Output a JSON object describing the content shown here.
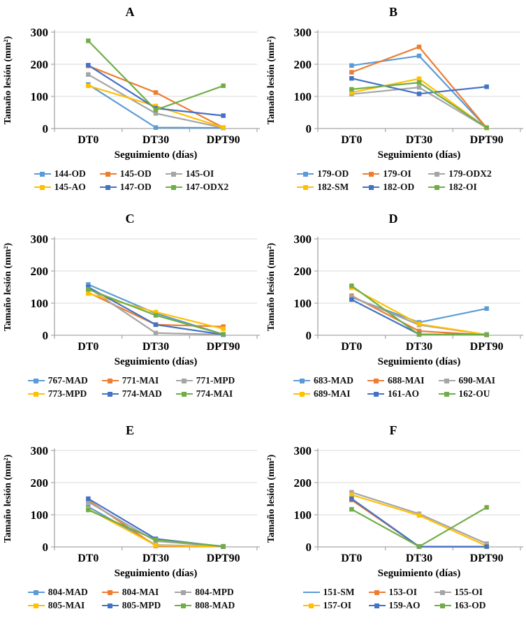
{
  "figure": {
    "background": "#FFFFFF",
    "axis_color": "#A6A6A6",
    "grid_color": "#D9D9D9",
    "text_color": "#000000"
  },
  "chart_data": [
    {
      "panel": "A",
      "type": "line",
      "title": "A",
      "xlabel": "Seguimiento (días)",
      "ylabel": "Tamaño lesión (mm²)",
      "categories": [
        "DT0",
        "DT30",
        "DPT90"
      ],
      "ylim": [
        0,
        300
      ],
      "yticks": [
        0,
        100,
        200,
        300
      ],
      "grid": true,
      "legend_position": "bottom",
      "series": [
        {
          "name": "144-OD",
          "color": "#5B9BD5",
          "marker": "square",
          "values": [
            137,
            3,
            2
          ]
        },
        {
          "name": "145-OD",
          "color": "#ED7D31",
          "marker": "square",
          "values": [
            195,
            112,
            3
          ]
        },
        {
          "name": "145-OI",
          "color": "#A5A5A5",
          "marker": "square",
          "values": [
            168,
            47,
            2
          ]
        },
        {
          "name": "145-AO",
          "color": "#FFC000",
          "marker": "square",
          "values": [
            133,
            70,
            3
          ]
        },
        {
          "name": "147-OD",
          "color": "#4472C4",
          "marker": "square",
          "values": [
            197,
            63,
            40
          ]
        },
        {
          "name": "147-ODX2",
          "color": "#70AD47",
          "marker": "square",
          "values": [
            273,
            58,
            133
          ]
        }
      ]
    },
    {
      "panel": "B",
      "type": "line",
      "title": "B",
      "xlabel": "Seguimiento (días)",
      "ylabel": "Tamaño lesión (mm²)",
      "categories": [
        "DT0",
        "DT30",
        "DPT90"
      ],
      "ylim": [
        0,
        300
      ],
      "yticks": [
        0,
        100,
        200,
        300
      ],
      "grid": true,
      "legend_position": "bottom",
      "series": [
        {
          "name": "179-OD",
          "color": "#5B9BD5",
          "marker": "square",
          "values": [
            196,
            226,
            2
          ]
        },
        {
          "name": "179-OI",
          "color": "#ED7D31",
          "marker": "square",
          "values": [
            175,
            254,
            2
          ]
        },
        {
          "name": "179-ODX2",
          "color": "#A5A5A5",
          "marker": "square",
          "values": [
            107,
            128,
            2
          ]
        },
        {
          "name": "182-SM",
          "color": "#FFC000",
          "marker": "square",
          "values": [
            112,
            155,
            2
          ]
        },
        {
          "name": "182-OD",
          "color": "#4472C4",
          "marker": "square",
          "values": [
            156,
            108,
            130
          ]
        },
        {
          "name": "182-OI",
          "color": "#70AD47",
          "marker": "square",
          "values": [
            122,
            143,
            3
          ]
        }
      ]
    },
    {
      "panel": "C",
      "type": "line",
      "title": "C",
      "xlabel": "Seguimiento (días)",
      "ylabel": "Tamaño lesión (mm²)",
      "categories": [
        "DT0",
        "DT30",
        "DPT90"
      ],
      "ylim": [
        0,
        300
      ],
      "yticks": [
        0,
        100,
        200,
        300
      ],
      "grid": true,
      "legend_position": "bottom",
      "series": [
        {
          "name": "767-MAD",
          "color": "#5B9BD5",
          "marker": "square",
          "values": [
            158,
            68,
            3
          ]
        },
        {
          "name": "771-MAI",
          "color": "#ED7D31",
          "marker": "square",
          "values": [
            133,
            33,
            27
          ]
        },
        {
          "name": "771-MPD",
          "color": "#A5A5A5",
          "marker": "square",
          "values": [
            148,
            7,
            2
          ]
        },
        {
          "name": "773-MPD",
          "color": "#FFC000",
          "marker": "square",
          "values": [
            130,
            72,
            20
          ]
        },
        {
          "name": "774-MAD",
          "color": "#4472C4",
          "marker": "square",
          "values": [
            150,
            33,
            2
          ]
        },
        {
          "name": "774-MAI",
          "color": "#70AD47",
          "marker": "square",
          "values": [
            143,
            62,
            3
          ]
        }
      ]
    },
    {
      "panel": "D",
      "type": "line",
      "title": "D",
      "xlabel": "Seguimiento (días)",
      "ylabel": "Tamaño lesión (mm²)",
      "categories": [
        "DT0",
        "DT30",
        "DPT90"
      ],
      "ylim": [
        0,
        300
      ],
      "yticks": [
        0,
        100,
        200,
        300
      ],
      "grid": true,
      "legend_position": "bottom",
      "series": [
        {
          "name": "683-MAD",
          "color": "#5B9BD5",
          "marker": "square",
          "values": [
            118,
            40,
            83
          ]
        },
        {
          "name": "688-MAI",
          "color": "#ED7D31",
          "marker": "square",
          "values": [
            123,
            13,
            1
          ]
        },
        {
          "name": "690-MAI",
          "color": "#A5A5A5",
          "marker": "square",
          "values": [
            120,
            32,
            2
          ]
        },
        {
          "name": "689-MAI",
          "color": "#FFC000",
          "marker": "square",
          "values": [
            148,
            35,
            2
          ]
        },
        {
          "name": "161-AO",
          "color": "#4472C4",
          "marker": "square",
          "values": [
            111,
            3,
            2
          ]
        },
        {
          "name": "162-OU",
          "color": "#70AD47",
          "marker": "square",
          "values": [
            154,
            2,
            2
          ]
        }
      ]
    },
    {
      "panel": "E",
      "type": "line",
      "title": "E",
      "xlabel": "Seguimiento (días)",
      "ylabel": "Tamaño lesión (mm²)",
      "categories": [
        "DT0",
        "DT30",
        "DPT90"
      ],
      "ylim": [
        0,
        300
      ],
      "yticks": [
        0,
        100,
        200,
        300
      ],
      "grid": true,
      "legend_position": "bottom",
      "series": [
        {
          "name": "804-MAD",
          "color": "#5B9BD5",
          "marker": "square",
          "values": [
            125,
            6,
            1
          ]
        },
        {
          "name": "804-MAI",
          "color": "#ED7D31",
          "marker": "square",
          "values": [
            145,
            3,
            1
          ]
        },
        {
          "name": "804-MPD",
          "color": "#A5A5A5",
          "marker": "square",
          "values": [
            140,
            18,
            1
          ]
        },
        {
          "name": "805-MAI",
          "color": "#FFC000",
          "marker": "square",
          "values": [
            118,
            5,
            1
          ]
        },
        {
          "name": "805-MPD",
          "color": "#4472C4",
          "marker": "square",
          "values": [
            150,
            25,
            1
          ]
        },
        {
          "name": "808-MAD",
          "color": "#70AD47",
          "marker": "square",
          "values": [
            115,
            22,
            2
          ]
        }
      ]
    },
    {
      "panel": "F",
      "type": "line",
      "title": "F",
      "xlabel": "Seguimiento (días)",
      "ylabel": "Tamaño lesión (mm²)",
      "categories": [
        "DT0",
        "DT30",
        "DPT90"
      ],
      "ylim": [
        0,
        300
      ],
      "yticks": [
        0,
        100,
        200,
        300
      ],
      "grid": true,
      "legend_position": "bottom",
      "series": [
        {
          "name": "151-SM",
          "color": "#5B9BD5",
          "marker": "none",
          "values": [
            148,
            0,
            0
          ]
        },
        {
          "name": "153-OI",
          "color": "#ED7D31",
          "marker": "square",
          "values": [
            146,
            1,
            1
          ]
        },
        {
          "name": "155-OI",
          "color": "#A5A5A5",
          "marker": "square",
          "values": [
            170,
            103,
            10
          ]
        },
        {
          "name": "157-OI",
          "color": "#FFC000",
          "marker": "square",
          "values": [
            162,
            98,
            3
          ]
        },
        {
          "name": "159-AO",
          "color": "#4472C4",
          "marker": "square",
          "values": [
            150,
            1,
            1
          ]
        },
        {
          "name": "163-OD",
          "color": "#70AD47",
          "marker": "square",
          "values": [
            117,
            1,
            123
          ]
        }
      ]
    }
  ]
}
